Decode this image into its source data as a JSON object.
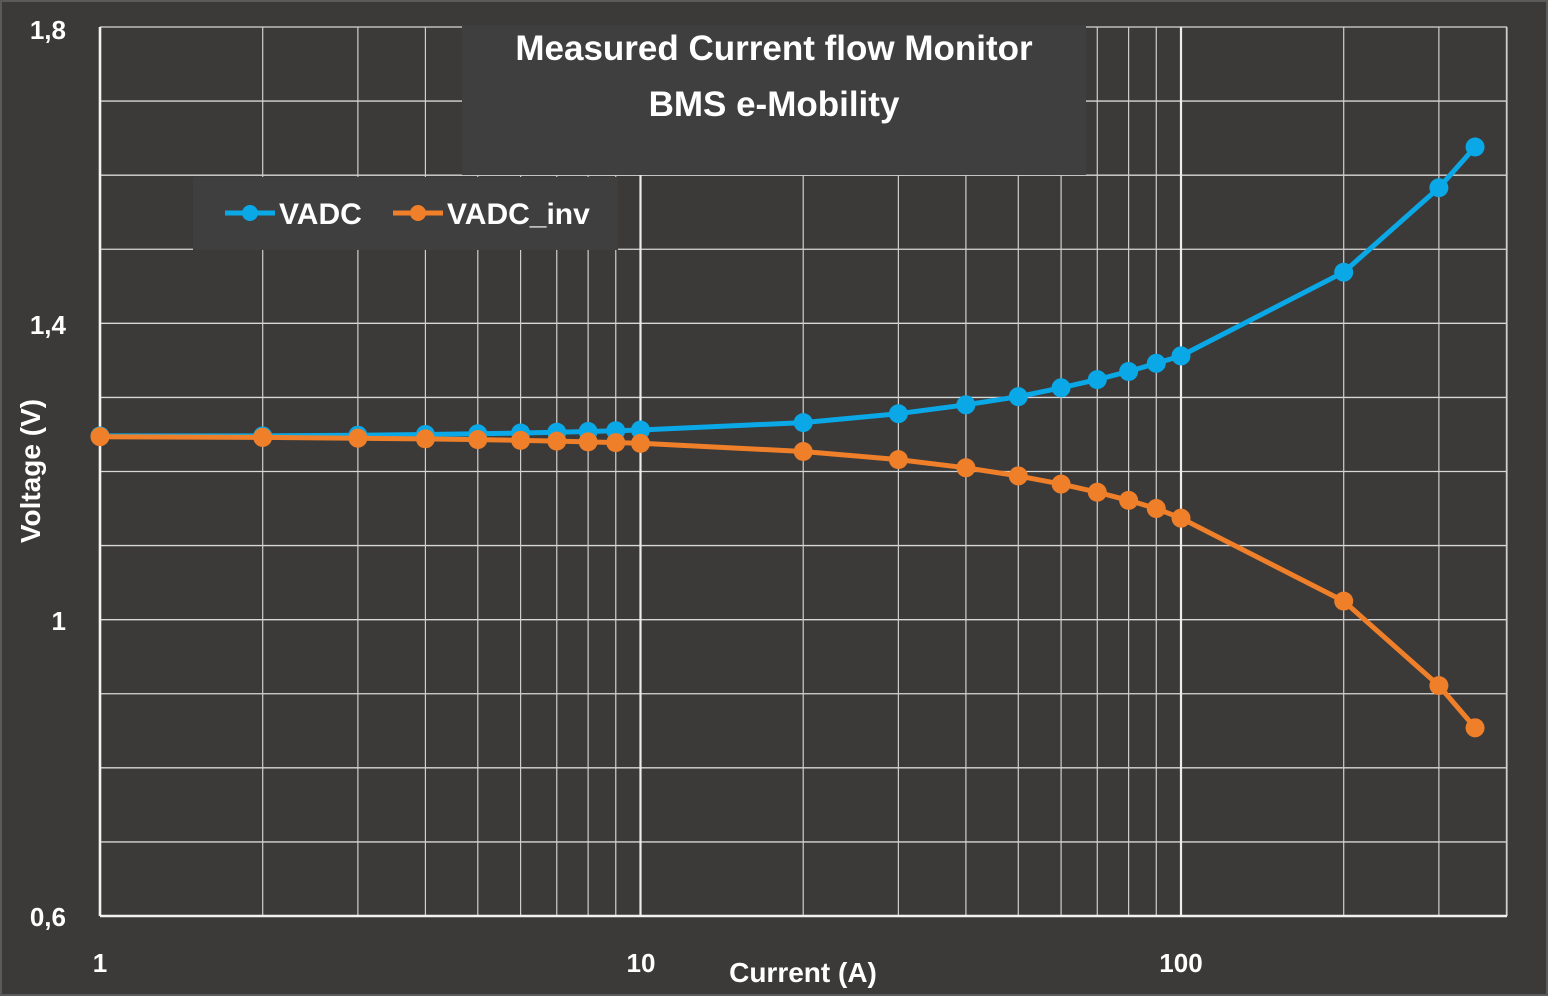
{
  "chart_data": {
    "type": "line",
    "title_lines": [
      "Measured Current flow Monitor",
      "BMS  e-Mobility"
    ],
    "xlabel": "Current (A)",
    "ylabel": "Voltage (V)",
    "x_scale": "log",
    "xlim": [
      1,
      400
    ],
    "ylim": [
      0.6,
      1.8
    ],
    "x_tick_labels": [
      "1",
      "10",
      "100"
    ],
    "y_tick_labels": [
      "0,6",
      "1",
      "1,4",
      "1,8"
    ],
    "grid": true,
    "legend_position": "top-left",
    "x": [
      1,
      2,
      3,
      4,
      5,
      6,
      7,
      8,
      9,
      10,
      20,
      30,
      40,
      50,
      60,
      70,
      80,
      90,
      100,
      200,
      300,
      350
    ],
    "series": [
      {
        "name": "VADC",
        "color": "#0aa8e6",
        "values": [
          1.248,
          1.248,
          1.249,
          1.25,
          1.251,
          1.252,
          1.253,
          1.254,
          1.255,
          1.256,
          1.266,
          1.278,
          1.29,
          1.301,
          1.313,
          1.324,
          1.335,
          1.346,
          1.356,
          1.469,
          1.583,
          1.638
        ]
      },
      {
        "name": "VADC_inv",
        "color": "#f07f2a",
        "values": [
          1.247,
          1.246,
          1.245,
          1.244,
          1.243,
          1.242,
          1.241,
          1.24,
          1.239,
          1.238,
          1.227,
          1.216,
          1.205,
          1.194,
          1.183,
          1.172,
          1.161,
          1.15,
          1.137,
          1.025,
          0.911,
          0.854
        ]
      }
    ]
  }
}
